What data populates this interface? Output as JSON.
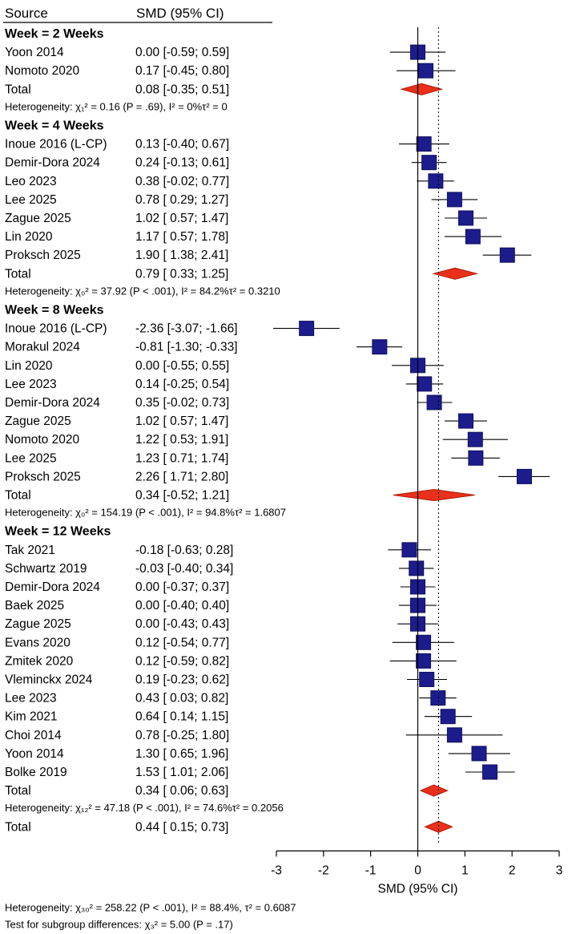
{
  "header": {
    "source": "Source",
    "smd": "SMD (95% CI)"
  },
  "colors": {
    "square": "#1c1c8c",
    "diamond": "#e8301a",
    "diamond_stroke": "#b01a08"
  },
  "chart_data": {
    "type": "forest",
    "xlabel": "SMD (95% CI)",
    "xlim": [
      -3,
      3
    ],
    "xticks": [
      "-3",
      "-2",
      "-1",
      "0",
      "1",
      "2",
      "3"
    ],
    "null_line": 0,
    "overall_reference": 0.44,
    "groups": [
      {
        "label": "Week = 2 Weeks",
        "studies": [
          {
            "name": "Yoon 2014",
            "est": 0.0,
            "lo": -0.59,
            "hi": 0.59,
            "ci": "0.00 [-0.59;  0.59]"
          },
          {
            "name": "Nomoto 2020",
            "est": 0.17,
            "lo": -0.45,
            "hi": 0.8,
            "ci": "0.17 [-0.45;  0.80]"
          }
        ],
        "total": {
          "name": "Total",
          "est": 0.08,
          "lo": -0.35,
          "hi": 0.51,
          "ci": "0.08 [-0.35;  0.51]"
        },
        "heterogeneity": "Heterogeneity: χ₁² = 0.16 (P = .69), I² = 0%τ² = 0"
      },
      {
        "label": "Week = 4 Weeks",
        "studies": [
          {
            "name": "Inoue 2016 (L-CP)",
            "est": 0.13,
            "lo": -0.4,
            "hi": 0.67,
            "ci": "0.13 [-0.40;  0.67]"
          },
          {
            "name": "Demir-Dora 2024",
            "est": 0.24,
            "lo": -0.13,
            "hi": 0.61,
            "ci": "0.24 [-0.13;  0.61]"
          },
          {
            "name": "Leo 2023",
            "est": 0.38,
            "lo": -0.02,
            "hi": 0.77,
            "ci": "0.38 [-0.02;  0.77]"
          },
          {
            "name": "Lee 2025",
            "est": 0.78,
            "lo": 0.29,
            "hi": 1.27,
            "ci": "0.78 [ 0.29;  1.27]"
          },
          {
            "name": "Zague 2025",
            "est": 1.02,
            "lo": 0.57,
            "hi": 1.47,
            "ci": "1.02 [ 0.57;  1.47]"
          },
          {
            "name": "Lin 2020",
            "est": 1.17,
            "lo": 0.57,
            "hi": 1.78,
            "ci": "1.17 [ 0.57;  1.78]"
          },
          {
            "name": "Proksch 2025",
            "est": 1.9,
            "lo": 1.38,
            "hi": 2.41,
            "ci": "1.90 [ 1.38;  2.41]"
          }
        ],
        "total": {
          "name": "Total",
          "est": 0.79,
          "lo": 0.33,
          "hi": 1.25,
          "ci": "0.79 [ 0.33;  1.25]"
        },
        "heterogeneity": "Heterogeneity: χ₀² = 37.92 (P < .001), I² = 84.2%τ² = 0.3210"
      },
      {
        "label": "Week = 8 Weeks",
        "studies": [
          {
            "name": "Inoue 2016 (L-CP)",
            "est": -2.36,
            "lo": -3.07,
            "hi": -1.66,
            "ci": "-2.36 [-3.07; -1.66]"
          },
          {
            "name": "Morakul 2024",
            "est": -0.81,
            "lo": -1.3,
            "hi": -0.33,
            "ci": "-0.81 [-1.30; -0.33]"
          },
          {
            "name": "Lin 2020",
            "est": 0.0,
            "lo": -0.55,
            "hi": 0.55,
            "ci": "0.00 [-0.55;  0.55]"
          },
          {
            "name": "Lee 2023",
            "est": 0.14,
            "lo": -0.25,
            "hi": 0.54,
            "ci": "0.14 [-0.25;  0.54]"
          },
          {
            "name": "Demir-Dora 2024",
            "est": 0.35,
            "lo": -0.02,
            "hi": 0.73,
            "ci": "0.35 [-0.02;  0.73]"
          },
          {
            "name": "Zague 2025",
            "est": 1.02,
            "lo": 0.57,
            "hi": 1.47,
            "ci": "1.02 [ 0.57;  1.47]"
          },
          {
            "name": "Nomoto 2020",
            "est": 1.22,
            "lo": 0.53,
            "hi": 1.91,
            "ci": "1.22 [ 0.53;  1.91]"
          },
          {
            "name": "Lee 2025",
            "est": 1.23,
            "lo": 0.71,
            "hi": 1.74,
            "ci": "1.23 [ 0.71;  1.74]"
          },
          {
            "name": "Proksch 2025",
            "est": 2.26,
            "lo": 1.71,
            "hi": 2.8,
            "ci": "2.26 [ 1.71;  2.80]"
          }
        ],
        "total": {
          "name": "Total",
          "est": 0.34,
          "lo": -0.52,
          "hi": 1.21,
          "ci": "0.34 [-0.52;  1.21]"
        },
        "heterogeneity": "Heterogeneity: χ₀² = 154.19 (P < .001), I² = 94.8%τ² = 1.6807"
      },
      {
        "label": "Week = 12 Weeks",
        "studies": [
          {
            "name": "Tak 2021",
            "est": -0.18,
            "lo": -0.63,
            "hi": 0.28,
            "ci": "-0.18 [-0.63;  0.28]"
          },
          {
            "name": "Schwartz 2019",
            "est": -0.03,
            "lo": -0.4,
            "hi": 0.34,
            "ci": "-0.03 [-0.40;  0.34]"
          },
          {
            "name": "Demir-Dora 2024",
            "est": 0.0,
            "lo": -0.37,
            "hi": 0.37,
            "ci": "0.00 [-0.37;  0.37]"
          },
          {
            "name": "Baek 2025",
            "est": 0.0,
            "lo": -0.4,
            "hi": 0.4,
            "ci": "0.00 [-0.40;  0.40]"
          },
          {
            "name": "Zague 2025",
            "est": 0.0,
            "lo": -0.43,
            "hi": 0.43,
            "ci": "0.00 [-0.43;  0.43]"
          },
          {
            "name": "Evans 2020",
            "est": 0.12,
            "lo": -0.54,
            "hi": 0.77,
            "ci": "0.12 [-0.54;  0.77]"
          },
          {
            "name": "Zmitek 2020",
            "est": 0.12,
            "lo": -0.59,
            "hi": 0.82,
            "ci": "0.12 [-0.59;  0.82]"
          },
          {
            "name": "Vleminckx 2024",
            "est": 0.19,
            "lo": -0.23,
            "hi": 0.62,
            "ci": "0.19 [-0.23;  0.62]"
          },
          {
            "name": "Lee 2023",
            "est": 0.43,
            "lo": 0.03,
            "hi": 0.82,
            "ci": "0.43 [ 0.03;  0.82]"
          },
          {
            "name": "Kim 2021",
            "est": 0.64,
            "lo": 0.14,
            "hi": 1.15,
            "ci": "0.64 [ 0.14;  1.15]"
          },
          {
            "name": "Choi 2014",
            "est": 0.78,
            "lo": -0.25,
            "hi": 1.8,
            "ci": "0.78 [-0.25;  1.80]"
          },
          {
            "name": "Yoon 2014",
            "est": 1.3,
            "lo": 0.65,
            "hi": 1.96,
            "ci": "1.30 [ 0.65;  1.96]"
          },
          {
            "name": "Bolke 2019",
            "est": 1.53,
            "lo": 1.01,
            "hi": 2.06,
            "ci": "1.53 [ 1.01;  2.06]"
          }
        ],
        "total": {
          "name": "Total",
          "est": 0.34,
          "lo": 0.06,
          "hi": 0.63,
          "ci": "0.34 [ 0.06;  0.63]"
        },
        "heterogeneity": "Heterogeneity: χ₁₂² = 47.18 (P < .001), I² = 74.6%τ² = 0.2056"
      }
    ],
    "overall": {
      "name": "Total",
      "est": 0.44,
      "lo": 0.15,
      "hi": 0.73,
      "ci": "0.44 [ 0.15;  0.73]"
    },
    "footnotes": [
      "Heterogeneity: χ₃₀² = 258.22 (P < .001), I² = 88.4%, τ² = 0.6087",
      "Test for subgroup differences: χ₃² = 5.00 (P = .17)"
    ]
  }
}
